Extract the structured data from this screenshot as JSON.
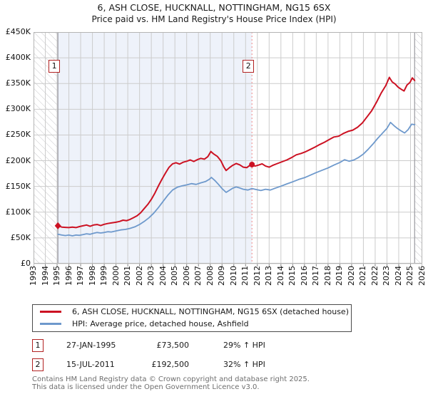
{
  "title": {
    "line1": "6, ASH CLOSE, HUCKNALL, NOTTINGHAM, NG15 6SX",
    "line2": "Price paid vs. HM Land Registry's House Price Index (HPI)"
  },
  "chart_data": {
    "type": "line",
    "x_range": [
      1993,
      2026
    ],
    "y_range": [
      0,
      450
    ],
    "y_unit": "GBP thousands",
    "y_ticks": [
      {
        "value": 0,
        "label": "£0"
      },
      {
        "value": 50,
        "label": "£50K"
      },
      {
        "value": 100,
        "label": "£100K"
      },
      {
        "value": 150,
        "label": "£150K"
      },
      {
        "value": 200,
        "label": "£200K"
      },
      {
        "value": 250,
        "label": "£250K"
      },
      {
        "value": 300,
        "label": "£300K"
      },
      {
        "value": 350,
        "label": "£350K"
      },
      {
        "value": 400,
        "label": "£400K"
      },
      {
        "value": 450,
        "label": "£450K"
      }
    ],
    "x_ticks": [
      1993,
      1994,
      1995,
      1996,
      1997,
      1998,
      1999,
      2000,
      2001,
      2002,
      2003,
      2004,
      2005,
      2006,
      2007,
      2008,
      2009,
      2010,
      2011,
      2012,
      2013,
      2014,
      2015,
      2016,
      2017,
      2018,
      2019,
      2020,
      2021,
      2022,
      2023,
      2024,
      2025,
      2026
    ],
    "grid_color": "#cccccc",
    "plot_border_color": "#b4b4b4",
    "shaded_region": {
      "from": 1995.07,
      "to": 2011.54,
      "color": "#eef2fa"
    },
    "hatch": {
      "left_until": 1995.07,
      "right_from": 2025.35,
      "line_color": "#c6c6ca"
    },
    "dashed_vline": {
      "x": 2011.54,
      "color": "#ee8888"
    },
    "series": [
      {
        "name": "6, ASH CLOSE, HUCKNALL, NOTTINGHAM, NG15 6SX (detached house)",
        "color": "#cc1122",
        "width": 2,
        "points": [
          [
            1995.07,
            73.5
          ],
          [
            1995.4,
            71
          ],
          [
            1995.7,
            70.5
          ],
          [
            1996,
            70
          ],
          [
            1996.3,
            71
          ],
          [
            1996.6,
            70
          ],
          [
            1996.9,
            72
          ],
          [
            1997.2,
            73.5
          ],
          [
            1997.5,
            75
          ],
          [
            1997.8,
            72.5
          ],
          [
            1998.1,
            75
          ],
          [
            1998.4,
            76
          ],
          [
            1998.7,
            74
          ],
          [
            1999,
            76.5
          ],
          [
            1999.3,
            78
          ],
          [
            1999.6,
            79
          ],
          [
            2000,
            80.5
          ],
          [
            2000.3,
            82
          ],
          [
            2000.6,
            84.5
          ],
          [
            2000.9,
            83.5
          ],
          [
            2001.2,
            86
          ],
          [
            2001.5,
            89.5
          ],
          [
            2001.8,
            93
          ],
          [
            2002.1,
            99
          ],
          [
            2002.4,
            107
          ],
          [
            2002.7,
            115
          ],
          [
            2003,
            125
          ],
          [
            2003.3,
            137
          ],
          [
            2003.6,
            151
          ],
          [
            2003.9,
            164
          ],
          [
            2004.2,
            176
          ],
          [
            2004.5,
            187
          ],
          [
            2004.8,
            194
          ],
          [
            2005.1,
            196
          ],
          [
            2005.4,
            193.5
          ],
          [
            2005.7,
            197
          ],
          [
            2006,
            199
          ],
          [
            2006.3,
            201.5
          ],
          [
            2006.6,
            198.5
          ],
          [
            2006.9,
            202
          ],
          [
            2007.2,
            204.5
          ],
          [
            2007.5,
            203
          ],
          [
            2007.8,
            208
          ],
          [
            2008.05,
            218
          ],
          [
            2008.3,
            213
          ],
          [
            2008.6,
            208.5
          ],
          [
            2008.9,
            200
          ],
          [
            2009.15,
            188
          ],
          [
            2009.35,
            181
          ],
          [
            2009.6,
            186
          ],
          [
            2009.9,
            191
          ],
          [
            2010.2,
            194.5
          ],
          [
            2010.5,
            192
          ],
          [
            2010.8,
            187.5
          ],
          [
            2011.1,
            186.5
          ],
          [
            2011.3,
            190
          ],
          [
            2011.54,
            192.5
          ],
          [
            2011.8,
            189.5
          ],
          [
            2012.1,
            191.5
          ],
          [
            2012.4,
            194
          ],
          [
            2012.7,
            189.5
          ],
          [
            2013,
            187.5
          ],
          [
            2013.3,
            191
          ],
          [
            2013.7,
            194.5
          ],
          [
            2014.1,
            198
          ],
          [
            2014.5,
            201.5
          ],
          [
            2014.9,
            206
          ],
          [
            2015.3,
            211.5
          ],
          [
            2015.7,
            214
          ],
          [
            2016.1,
            217.5
          ],
          [
            2016.5,
            222
          ],
          [
            2016.9,
            226.5
          ],
          [
            2017.3,
            231.5
          ],
          [
            2017.7,
            236
          ],
          [
            2018.1,
            241
          ],
          [
            2018.5,
            246
          ],
          [
            2018.9,
            247.5
          ],
          [
            2019.3,
            253
          ],
          [
            2019.7,
            257
          ],
          [
            2020.1,
            259.5
          ],
          [
            2020.5,
            265
          ],
          [
            2020.9,
            273
          ],
          [
            2021.3,
            285
          ],
          [
            2021.7,
            297
          ],
          [
            2022.1,
            313
          ],
          [
            2022.5,
            331
          ],
          [
            2022.9,
            346
          ],
          [
            2023.2,
            362
          ],
          [
            2023.45,
            353
          ],
          [
            2023.7,
            349
          ],
          [
            2023.95,
            343
          ],
          [
            2024.2,
            339
          ],
          [
            2024.45,
            335.5
          ],
          [
            2024.7,
            347
          ],
          [
            2024.95,
            352
          ],
          [
            2025.15,
            361
          ],
          [
            2025.35,
            356
          ]
        ]
      },
      {
        "name": "HPI: Average price, detached house, Ashfield",
        "color": "#6e99cc",
        "width": 1.8,
        "points": [
          [
            1995.07,
            57
          ],
          [
            1995.4,
            55.5
          ],
          [
            1995.7,
            54.5
          ],
          [
            1996,
            55.5
          ],
          [
            1996.3,
            54
          ],
          [
            1996.6,
            55.5
          ],
          [
            1996.9,
            55
          ],
          [
            1997.2,
            56.5
          ],
          [
            1997.5,
            58
          ],
          [
            1997.8,
            57
          ],
          [
            1998.1,
            59
          ],
          [
            1998.4,
            60.5
          ],
          [
            1998.7,
            59.5
          ],
          [
            1999,
            60.5
          ],
          [
            1999.3,
            62
          ],
          [
            1999.6,
            61.5
          ],
          [
            2000,
            63.5
          ],
          [
            2000.4,
            65.5
          ],
          [
            2000.8,
            66.5
          ],
          [
            2001.2,
            68.5
          ],
          [
            2001.6,
            71.5
          ],
          [
            2002,
            76
          ],
          [
            2002.4,
            82
          ],
          [
            2002.8,
            89
          ],
          [
            2003.2,
            98
          ],
          [
            2003.6,
            109
          ],
          [
            2004,
            121
          ],
          [
            2004.4,
            133
          ],
          [
            2004.8,
            143
          ],
          [
            2005.2,
            148.5
          ],
          [
            2005.6,
            151
          ],
          [
            2006,
            153
          ],
          [
            2006.4,
            155.5
          ],
          [
            2006.8,
            154
          ],
          [
            2007.2,
            157
          ],
          [
            2007.6,
            159.5
          ],
          [
            2007.9,
            163.5
          ],
          [
            2008.1,
            167.5
          ],
          [
            2008.4,
            161.5
          ],
          [
            2008.7,
            154
          ],
          [
            2009,
            146
          ],
          [
            2009.35,
            138.5
          ],
          [
            2009.6,
            142
          ],
          [
            2009.9,
            146.5
          ],
          [
            2010.2,
            149
          ],
          [
            2010.5,
            147
          ],
          [
            2010.8,
            144.5
          ],
          [
            2011.2,
            143
          ],
          [
            2011.54,
            146
          ],
          [
            2011.9,
            144
          ],
          [
            2012.3,
            142
          ],
          [
            2012.7,
            144.5
          ],
          [
            2013.1,
            143
          ],
          [
            2013.5,
            146.5
          ],
          [
            2014,
            150.5
          ],
          [
            2014.5,
            155
          ],
          [
            2015,
            159
          ],
          [
            2015.5,
            163.5
          ],
          [
            2016,
            167
          ],
          [
            2016.5,
            172
          ],
          [
            2017,
            177
          ],
          [
            2017.5,
            181.5
          ],
          [
            2018,
            186
          ],
          [
            2018.5,
            191.5
          ],
          [
            2019,
            196.5
          ],
          [
            2019.4,
            202
          ],
          [
            2019.8,
            199
          ],
          [
            2020.2,
            201.5
          ],
          [
            2020.6,
            206.5
          ],
          [
            2021,
            213
          ],
          [
            2021.4,
            222
          ],
          [
            2021.8,
            232
          ],
          [
            2022.2,
            243
          ],
          [
            2022.6,
            253
          ],
          [
            2023,
            263
          ],
          [
            2023.3,
            274.5
          ],
          [
            2023.6,
            268
          ],
          [
            2023.9,
            262.5
          ],
          [
            2024.2,
            258
          ],
          [
            2024.5,
            254
          ],
          [
            2024.8,
            260.5
          ],
          [
            2025.1,
            271
          ],
          [
            2025.35,
            270
          ]
        ]
      }
    ],
    "markers": [
      {
        "label": "1",
        "x": 1995.07,
        "y": 73.5,
        "shape": "diamond",
        "color": "#cc1122"
      },
      {
        "label": "2",
        "x": 2011.54,
        "y": 192.5,
        "shape": "circle",
        "color": "#cc1122"
      }
    ]
  },
  "legend": {
    "items": [
      {
        "label": "6, ASH CLOSE, HUCKNALL, NOTTINGHAM, NG15 6SX (detached house)",
        "color": "#cc1122"
      },
      {
        "label": "HPI: Average price, detached house, Ashfield",
        "color": "#6e99cc"
      }
    ]
  },
  "sales": [
    {
      "num": "1",
      "date": "27-JAN-1995",
      "price": "£73,500",
      "hpi": "29% ↑ HPI"
    },
    {
      "num": "2",
      "date": "15-JUL-2011",
      "price": "£192,500",
      "hpi": "32% ↑ HPI"
    }
  ],
  "footer": {
    "line1": "Contains HM Land Registry data © Crown copyright and database right 2025.",
    "line2": "This data is licensed under the Open Government Licence v3.0."
  }
}
